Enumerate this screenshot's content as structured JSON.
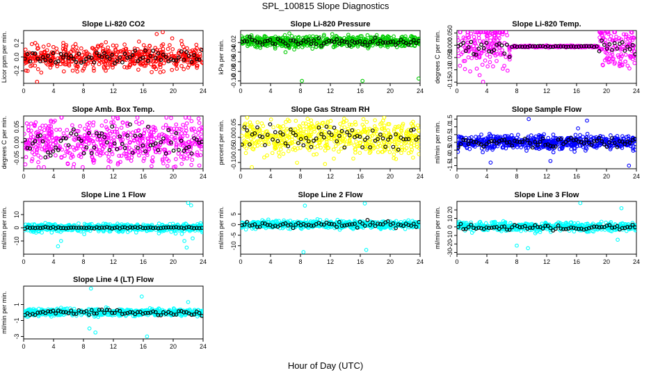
{
  "figure": {
    "title": "SPL_100815  Slope Diagnostics",
    "xlabel": "Hour of Day (UTC)"
  },
  "chart_data": [
    {
      "type": "scatter",
      "title": "Slope Li-820 CO2",
      "ylabel": "Licor ppm per min.",
      "color": "#ff0000",
      "xlim": [
        0,
        24
      ],
      "xticks": [
        0,
        4,
        8,
        12,
        16,
        20,
        24
      ],
      "ylim": [
        -0.38,
        0.38
      ],
      "yticks": [
        -0.2,
        0.0,
        0.2
      ],
      "ytick_labels": [
        "-0.2",
        "0.0",
        "0.2"
      ],
      "center": 0.0,
      "spread": 0.09,
      "npts": 560,
      "black_spread": 0.05,
      "window": null,
      "spikes": [
        {
          "x": 1.8,
          "y": -0.36
        },
        {
          "x": 18.6,
          "y": 0.36
        },
        {
          "x": 17.8,
          "y": 0.33
        }
      ]
    },
    {
      "type": "scatter",
      "title": "Slope Li-820 Pressure",
      "ylabel": "kPa per min.",
      "color": "#00cc00",
      "xlim": [
        0,
        24
      ],
      "xticks": [
        0,
        4,
        8,
        12,
        16,
        20,
        24
      ],
      "ylim": [
        -0.105,
        0.005
      ],
      "yticks": [
        -0.1,
        -0.08,
        -0.06,
        -0.04,
        -0.02
      ],
      "ytick_labels": [
        "-0.10",
        "-0.08",
        "-0.06",
        "-0.04",
        "-0.02"
      ],
      "center": -0.018,
      "spread": 0.006,
      "npts": 620,
      "black_spread": 0.004,
      "window": null,
      "spikes": [
        {
          "x": 8.2,
          "y": -0.1
        },
        {
          "x": 16.3,
          "y": -0.1
        },
        {
          "x": 23.8,
          "y": -0.095
        },
        {
          "x": 6.0,
          "y": -0.04
        }
      ]
    },
    {
      "type": "scatter",
      "title": "Slope Li-820 Temp.",
      "ylabel": "degrees C per min.",
      "color": "#ff00ff",
      "xlim": [
        0,
        24
      ],
      "xticks": [
        0,
        4,
        8,
        12,
        16,
        20,
        24
      ],
      "ylim": [
        -0.155,
        0.06
      ],
      "yticks": [
        -0.15,
        -0.1,
        -0.05,
        0.0,
        0.05
      ],
      "ytick_labels": [
        "-0.15",
        "-0.10",
        "-0.050",
        "0.000",
        "0.050"
      ],
      "center": -0.005,
      "spread": 0.045,
      "npts": 560,
      "black_spread": 0.02,
      "window": [
        7.2,
        19.0
      ],
      "spikes": [
        {
          "x": 3.5,
          "y": -0.15
        },
        {
          "x": 20.2,
          "y": 0.055
        }
      ]
    },
    {
      "type": "scatter",
      "title": "Slope Amb. Box Temp.",
      "ylabel": "degrees C per min.",
      "color": "#ff00ff",
      "xlim": [
        0,
        24
      ],
      "xticks": [
        0,
        4,
        8,
        12,
        16,
        20,
        24
      ],
      "ylim": [
        -0.085,
        0.085
      ],
      "yticks": [
        -0.05,
        0.0,
        0.05
      ],
      "ytick_labels": [
        "-0.05",
        "0.00",
        "0.05"
      ],
      "center": 0.0,
      "spread": 0.035,
      "npts": 560,
      "black_spread": 0.025,
      "window": null,
      "spikes": [
        {
          "x": 2.0,
          "y": -0.082
        }
      ]
    },
    {
      "type": "scatter",
      "title": "Slope Gas Stream RH",
      "ylabel": "percent per min.",
      "color": "#ffff00",
      "xlim": [
        0,
        24
      ],
      "xticks": [
        0,
        4,
        8,
        12,
        16,
        20,
        24
      ],
      "ylim": [
        -0.125,
        0.085
      ],
      "yticks": [
        -0.1,
        -0.05,
        0.0,
        0.05
      ],
      "ytick_labels": [
        "-0.10",
        "-0.05",
        "0.00",
        "0.05"
      ],
      "center": 0.0,
      "spread": 0.035,
      "npts": 560,
      "black_spread": 0.025,
      "window": null,
      "spikes": [
        {
          "x": 1.5,
          "y": -0.12
        }
      ]
    },
    {
      "type": "scatter",
      "title": "Slope Sample Flow",
      "ylabel": "ml/min per min.",
      "color": "#0000ff",
      "xlim": [
        0,
        24
      ],
      "xticks": [
        0,
        4,
        8,
        12,
        16,
        20,
        24
      ],
      "ylim": [
        -1.7,
        1.7
      ],
      "yticks": [
        -1.5,
        -1.0,
        -0.5,
        0.0,
        0.5,
        1.0,
        1.5
      ],
      "ytick_labels": [
        "-1.5",
        "-1.0",
        "-0.5",
        "0.0",
        "0.5",
        "1.0",
        "1.5"
      ],
      "center": 0.0,
      "spread": 0.22,
      "npts": 620,
      "black_spread": 0.15,
      "window": null,
      "spikes": [
        {
          "x": 9.6,
          "y": 1.5
        },
        {
          "x": 17.4,
          "y": 1.4
        },
        {
          "x": 16.2,
          "y": 0.9
        },
        {
          "x": 23.0,
          "y": -1.5
        },
        {
          "x": 4.5,
          "y": -1.3
        },
        {
          "x": 12.5,
          "y": -1.2
        }
      ]
    },
    {
      "type": "scatter",
      "title": "Slope Line 1 Flow",
      "ylabel": "ml/min per min.",
      "color": "#00ffff",
      "xlim": [
        0,
        24
      ],
      "xticks": [
        0,
        4,
        8,
        12,
        16,
        20,
        24
      ],
      "ylim": [
        -20,
        20
      ],
      "yticks": [
        -10,
        0,
        10
      ],
      "ytick_labels": [
        "-10",
        "0",
        "10"
      ],
      "center": 0.0,
      "spread": 1.5,
      "npts": 560,
      "black_spread": 0.3,
      "window": null,
      "spikes": [
        {
          "x": 22.0,
          "y": 19
        },
        {
          "x": 22.4,
          "y": 17
        },
        {
          "x": 21.5,
          "y": -10
        },
        {
          "x": 21.8,
          "y": -15
        },
        {
          "x": 4.6,
          "y": -14
        },
        {
          "x": 5.0,
          "y": -10
        },
        {
          "x": 22.6,
          "y": -8
        }
      ]
    },
    {
      "type": "scatter",
      "title": "Slope Line 2 Flow",
      "ylabel": "ml/min per min.",
      "color": "#00ffff",
      "xlim": [
        0,
        24
      ],
      "xticks": [
        0,
        4,
        8,
        12,
        16,
        20,
        24
      ],
      "ylim": [
        -14,
        11
      ],
      "yticks": [
        -10,
        -5,
        0,
        5
      ],
      "ytick_labels": [
        "-10",
        "-5",
        "0",
        "5"
      ],
      "center": 0.0,
      "spread": 0.9,
      "npts": 560,
      "black_spread": 0.8,
      "window": null,
      "spikes": [
        {
          "x": 8.4,
          "y": -13
        },
        {
          "x": 16.8,
          "y": -12
        },
        {
          "x": 16.6,
          "y": 10
        },
        {
          "x": 8.6,
          "y": 9
        }
      ]
    },
    {
      "type": "scatter",
      "title": "Slope Line 3 Flow",
      "ylabel": "ml/min per min.",
      "color": "#00ffff",
      "xlim": [
        0,
        24
      ],
      "xticks": [
        0,
        4,
        8,
        12,
        16,
        20,
        24
      ],
      "ylim": [
        -32,
        30
      ],
      "yticks": [
        -30,
        -20,
        -10,
        0,
        10,
        20
      ],
      "ytick_labels": [
        "-30",
        "-20",
        "-10",
        "0",
        "10",
        "20"
      ],
      "center": 0.0,
      "spread": 2.5,
      "npts": 560,
      "black_spread": 1.5,
      "window": null,
      "spikes": [
        {
          "x": 9.5,
          "y": -25
        },
        {
          "x": 16.5,
          "y": 28
        },
        {
          "x": 8.0,
          "y": -22
        },
        {
          "x": 22.0,
          "y": 22
        },
        {
          "x": 21.5,
          "y": -15
        }
      ]
    },
    {
      "type": "scatter",
      "title": "Slope Line 4 (LT) Flow",
      "ylabel": "ml/min per min.",
      "color": "#00ffff",
      "xlim": [
        0,
        24
      ],
      "xticks": [
        0,
        4,
        8,
        12,
        16,
        20,
        24
      ],
      "ylim": [
        -3.3,
        3.3
      ],
      "yticks": [
        -3,
        -1,
        1
      ],
      "ytick_labels": [
        "-3",
        "-1",
        "1"
      ],
      "center": 0.0,
      "spread": 0.22,
      "npts": 560,
      "black_spread": 0.2,
      "window": null,
      "spikes": [
        {
          "x": 9.0,
          "y": 3.0
        },
        {
          "x": 8.8,
          "y": -2.0
        },
        {
          "x": 16.5,
          "y": -3.0
        },
        {
          "x": 9.6,
          "y": -2.5
        },
        {
          "x": 15.8,
          "y": 2.0
        },
        {
          "x": 22.0,
          "y": 1.3
        }
      ]
    }
  ]
}
